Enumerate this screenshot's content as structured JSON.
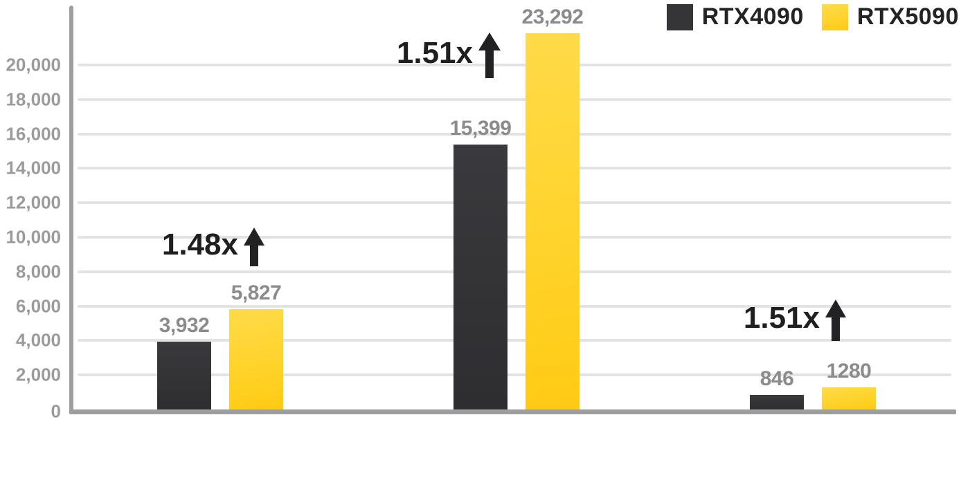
{
  "chart_data": {
    "type": "bar",
    "title": "",
    "categories": [
      "",
      "",
      ""
    ],
    "series": [
      {
        "name": "RTX4090",
        "color": "#353538",
        "values": [
          3932,
          15399,
          846
        ],
        "value_labels": [
          "3,932",
          "15,399",
          "846"
        ]
      },
      {
        "name": "RTX5090",
        "color": "#ffd32b",
        "values": [
          5827,
          23292,
          1280
        ],
        "value_labels": [
          "5,827",
          "23,292",
          "1280"
        ]
      }
    ],
    "gain_annotations": [
      {
        "group": 0,
        "text": "1.48x"
      },
      {
        "group": 1,
        "text": "1.51x"
      },
      {
        "group": 2,
        "text": "1.51x"
      }
    ],
    "y_axis": {
      "min": 0,
      "max": 20000,
      "tick_step": 2000,
      "tick_labels": [
        "0",
        "2,000",
        "4,000",
        "6,000",
        "8,000",
        "10,000",
        "12,000",
        "14,000",
        "16,000",
        "18,000",
        "20,000"
      ]
    },
    "legend": {
      "position": "top-right",
      "entries": [
        {
          "label": "RTX4090",
          "color": "#353538"
        },
        {
          "label": "RTX5090",
          "color": "#ffd32b"
        }
      ]
    },
    "grid": true,
    "layout_note": "middle RTX5090 bar value 23,292 exceeds y-axis max 20,000 and is drawn visually clipped at the plot top"
  },
  "colors": {
    "background": "#ffffff",
    "gridline": "#e3e3e3",
    "axis": "#9e9e9e",
    "tick_text": "#9b9b9b",
    "value_text": "#8b8b8b",
    "legend_text": "#242427",
    "arrow": "#222225",
    "bar_dark": "#353538",
    "bar_yellow": "#ffd32b"
  }
}
